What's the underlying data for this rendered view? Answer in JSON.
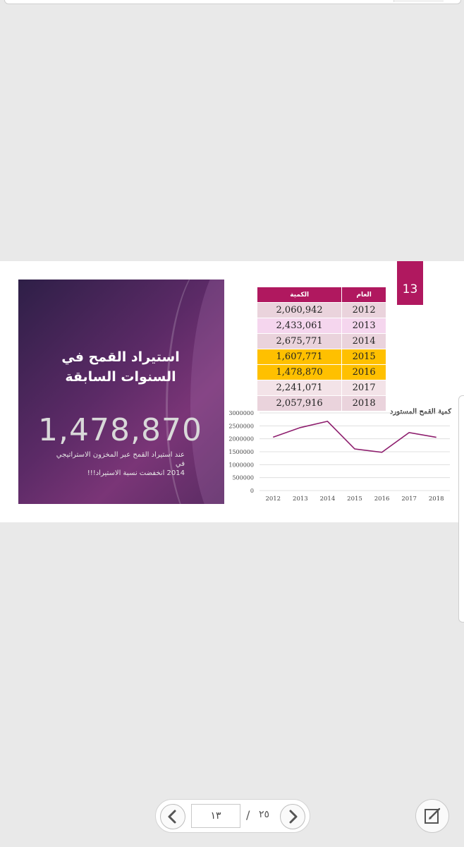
{
  "slide": {
    "page_number": "13",
    "title_line1": "استيراد القمح في",
    "title_line2": "السنوات السابقة",
    "big_number": "1,478,870",
    "note_line1": "عند استيراد القمح عبر المخزون الاستراتيجي في",
    "note_line2": "2014 انخفضت نسبة الاستيراد!!!"
  },
  "table": {
    "headers": [
      "العام",
      "الكمية"
    ],
    "rows": [
      {
        "year": "2012",
        "qty": "2,060,942"
      },
      {
        "year": "2013",
        "qty": "2,433,061"
      },
      {
        "year": "2014",
        "qty": "2,675,771"
      },
      {
        "year": "2015",
        "qty": "1,607,771"
      },
      {
        "year": "2016",
        "qty": "1,478,870"
      },
      {
        "year": "2017",
        "qty": "2,241,071"
      },
      {
        "year": "2018",
        "qty": "2,057,916"
      }
    ],
    "highlight_color": "#ffc000",
    "header_color": "#b0185f"
  },
  "chart_data": {
    "type": "line",
    "title": "كمية القمح المستورد",
    "x": [
      "2012",
      "2013",
      "2014",
      "2015",
      "2016",
      "2017",
      "2018"
    ],
    "series": [
      {
        "values": [
          2060942,
          2433061,
          2675771,
          1607771,
          1478870,
          2241071,
          2057916
        ],
        "color": "#8e1f6e"
      }
    ],
    "yticks": [
      "0",
      "500000",
      "1000000",
      "1500000",
      "2000000",
      "2500000",
      "3000000"
    ],
    "ylim": [
      0,
      3000000
    ],
    "grid": true,
    "xlabel": "",
    "ylabel": ""
  },
  "viewer": {
    "current_page": "١٣",
    "separator": "/",
    "total_pages": "٢٥",
    "prev_icon": "chevron-left-icon",
    "next_icon": "chevron-right-icon",
    "edit_icon": "edit-note-icon"
  }
}
